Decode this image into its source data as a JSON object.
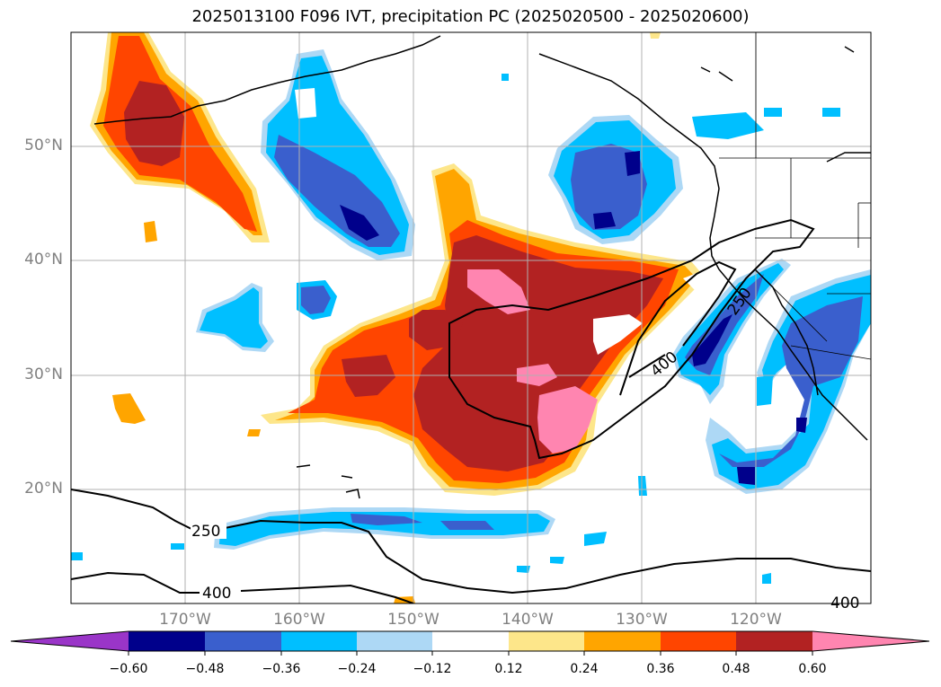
{
  "title": "2025013100 F096 IVT, precipitation PC (2025020500 - 2025020600)",
  "lat_labels": [
    "50°N",
    "40°N",
    "30°N",
    "20°N"
  ],
  "lon_labels": [
    "170°W",
    "160°W",
    "150°W",
    "140°W",
    "130°W",
    "120°W"
  ],
  "contour_labels": [
    "250",
    "400",
    "250",
    "400",
    "400"
  ],
  "colorbar": {
    "tick_labels": [
      "−0.60",
      "−0.48",
      "−0.36",
      "−0.24",
      "−0.12",
      "0.12",
      "0.24",
      "0.36",
      "0.48",
      "0.60"
    ],
    "colors": [
      "#9a35c8",
      "#00008b",
      "#3a5fcd",
      "#00bfff",
      "#add8f5",
      "#ffffff",
      "#fde68a",
      "#ffa500",
      "#ff4500",
      "#b22222",
      "#ff85b0"
    ]
  },
  "map_extent": {
    "lon_range": [
      -180,
      -110
    ],
    "lat_range": [
      10,
      60
    ]
  }
}
